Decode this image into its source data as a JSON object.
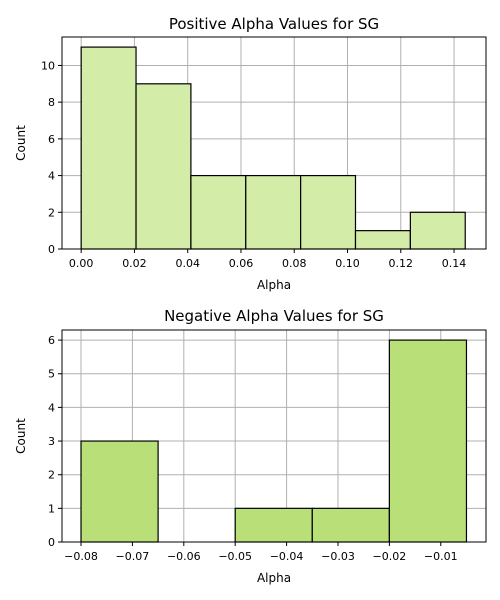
{
  "chart_data": [
    {
      "type": "bar",
      "title": "Positive Alpha Values for SG",
      "xlabel": "Alpha",
      "ylabel": "Count",
      "xlim": [
        -0.0072,
        0.152
      ],
      "ylim": [
        0,
        11.55
      ],
      "xticks": [
        0.0,
        0.02,
        0.04,
        0.06,
        0.08,
        0.1,
        0.12,
        0.14
      ],
      "xtick_labels": [
        "0.00",
        "0.02",
        "0.04",
        "0.06",
        "0.08",
        "0.10",
        "0.12",
        "0.14"
      ],
      "yticks": [
        0,
        2,
        4,
        6,
        8,
        10
      ],
      "ytick_labels": [
        "0",
        "2",
        "4",
        "6",
        "8",
        "10"
      ],
      "bins": [
        {
          "x0": 0.0,
          "x1": 0.0206,
          "count": 11
        },
        {
          "x0": 0.0206,
          "x1": 0.0412,
          "count": 9
        },
        {
          "x0": 0.0412,
          "x1": 0.0618,
          "count": 4
        },
        {
          "x0": 0.0618,
          "x1": 0.0824,
          "count": 4
        },
        {
          "x0": 0.0824,
          "x1": 0.103,
          "count": 4
        },
        {
          "x0": 0.103,
          "x1": 0.1236,
          "count": 1
        },
        {
          "x0": 0.1236,
          "x1": 0.1442,
          "count": 2
        }
      ],
      "bar_color": "#d3eca8",
      "grid": true
    },
    {
      "type": "bar",
      "title": "Negative Alpha Values for SG",
      "xlabel": "Alpha",
      "ylabel": "Count",
      "xlim": [
        -0.0837,
        -0.0012
      ],
      "ylim": [
        0,
        6.3
      ],
      "xticks": [
        -0.08,
        -0.07,
        -0.06,
        -0.05,
        -0.04,
        -0.03,
        -0.02,
        -0.01
      ],
      "xtick_labels": [
        "−0.08",
        "−0.07",
        "−0.06",
        "−0.05",
        "−0.04",
        "−0.03",
        "−0.02",
        "−0.01"
      ],
      "yticks": [
        0,
        1,
        2,
        3,
        4,
        5,
        6
      ],
      "ytick_labels": [
        "0",
        "1",
        "2",
        "3",
        "4",
        "5",
        "6"
      ],
      "bins": [
        {
          "x0": -0.08,
          "x1": -0.065,
          "count": 3
        },
        {
          "x0": -0.065,
          "x1": -0.05,
          "count": 0
        },
        {
          "x0": -0.05,
          "x1": -0.035,
          "count": 1
        },
        {
          "x0": -0.035,
          "x1": -0.02,
          "count": 1
        },
        {
          "x0": -0.02,
          "x1": -0.005,
          "count": 6
        }
      ],
      "bar_color": "#b8df78",
      "grid": true
    }
  ]
}
